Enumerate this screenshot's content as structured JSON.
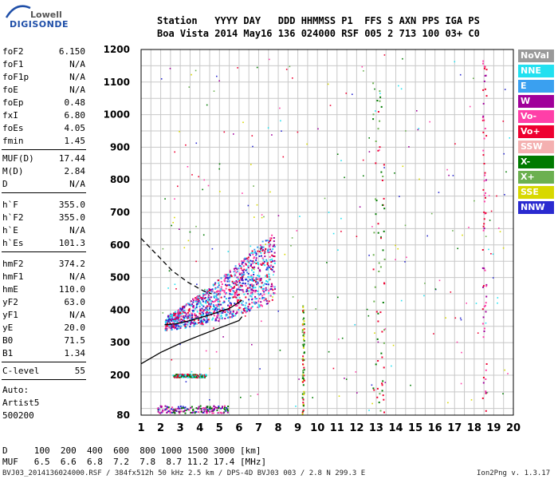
{
  "logo": {
    "line1": "Lowell",
    "line2": "DIGISONDE"
  },
  "header": {
    "station_label": "Station",
    "station": "Boa Vista",
    "yyyy_label": "YYYY",
    "yyyy": "2014",
    "day_label": "DAY",
    "day": "May16",
    "ddd_label": "DDD",
    "ddd": "136",
    "hhmmss_label": "HHMMSS",
    "hhmmss": "024000",
    "p1_label": "P1",
    "p1": "RSF",
    "ffs_label": "FFS",
    "ffs": "005",
    "s_label": "S",
    "s": "2",
    "axn_label": "AXN",
    "axn": "713",
    "pps_label": "PPS",
    "pps": "100",
    "iga_label": "IGA",
    "iga": "03+",
    "ps_label": "PS",
    "ps": "C0"
  },
  "params": [
    {
      "name": "foF2",
      "value": "6.150"
    },
    {
      "name": "foF1",
      "value": "N/A"
    },
    {
      "name": "foF1p",
      "value": "N/A"
    },
    {
      "name": "foE",
      "value": "N/A"
    },
    {
      "name": "foEp",
      "value": "0.48"
    },
    {
      "name": "fxI",
      "value": "6.80"
    },
    {
      "name": "foEs",
      "value": "4.05"
    },
    {
      "name": "fmin",
      "value": "1.45"
    },
    {
      "name": "MUF(D)",
      "value": "17.44"
    },
    {
      "name": "M(D)",
      "value": "2.84"
    },
    {
      "name": "D",
      "value": "N/A"
    },
    {
      "name": "h`F",
      "value": "355.0"
    },
    {
      "name": "h`F2",
      "value": "355.0"
    },
    {
      "name": "h`E",
      "value": "N/A"
    },
    {
      "name": "h`Es",
      "value": "101.3"
    },
    {
      "name": "hmF2",
      "value": "374.2"
    },
    {
      "name": "hmF1",
      "value": "N/A"
    },
    {
      "name": "hmE",
      "value": "110.0"
    },
    {
      "name": "yF2",
      "value": "63.0"
    },
    {
      "name": "yF1",
      "value": "N/A"
    },
    {
      "name": "yE",
      "value": "20.0"
    },
    {
      "name": "B0",
      "value": "71.5"
    },
    {
      "name": "B1",
      "value": "1.34"
    },
    {
      "name": "C-level",
      "value": "55"
    }
  ],
  "notes": {
    "auto": "Auto:",
    "artist": "Artist5",
    "code": "500200"
  },
  "legend": [
    {
      "label": "NoVal",
      "color": "#9a9a9a"
    },
    {
      "label": "NNE",
      "color": "#22e0f0"
    },
    {
      "label": "E",
      "color": "#3aa0f0"
    },
    {
      "label": "W",
      "color": "#a0009a"
    },
    {
      "label": "Vo-",
      "color": "#ff3fa8"
    },
    {
      "label": "Vo+",
      "color": "#ee0030"
    },
    {
      "label": "SSW",
      "color": "#f4b0b0"
    },
    {
      "label": "X-",
      "color": "#007a00"
    },
    {
      "label": "X+",
      "color": "#6cb050"
    },
    {
      "label": "SSE",
      "color": "#d8d800"
    },
    {
      "label": "NNW",
      "color": "#2a2ad0"
    }
  ],
  "footer": {
    "d_label": "D",
    "d_values": "100  200  400  600  800 1000 1500 3000 [km]",
    "muf_label": "MUF",
    "muf_values": "6.5  6.6  6.8  7.2  7.8  8.7 11.2 17.4 [MHz]",
    "file_info": "BVJ03_2014136024000.RSF / 384fx512h 50 kHz 2.5 km / DPS-4D BVJ03 003 / 2.8 N 299.3 E",
    "version": "Ion2Png v. 1.3.17"
  },
  "chart_data": {
    "type": "scatter",
    "xlim": [
      1,
      20
    ],
    "ylim": [
      80,
      1200
    ],
    "x_ticks": [
      "1",
      "2",
      "3",
      "4",
      "5",
      "6",
      "7",
      "8",
      "9",
      "10",
      "11",
      "12",
      "13",
      "14",
      "15",
      "16",
      "17",
      "18",
      "19",
      "20"
    ],
    "y_ticks": [
      "80",
      "200",
      "300",
      "400",
      "500",
      "600",
      "700",
      "800",
      "900",
      "1000",
      "1100",
      "1200"
    ],
    "grid": true,
    "clusters": [
      {
        "name": "F2 trace",
        "x": [
          2.2,
          7.8
        ],
        "y": [
          340,
          600
        ],
        "colors": [
          "#22e0f0",
          "#3aa0f0",
          "#ee0030",
          "#ff3fa8",
          "#a0009a",
          "#2a2ad0"
        ]
      },
      {
        "name": "Es 200 km",
        "x": [
          2.6,
          4.3
        ],
        "y": [
          195,
          205
        ],
        "colors": [
          "#ee0030",
          "#007a00",
          "#22e0f0"
        ]
      },
      {
        "name": "Es 100 km",
        "x": [
          1.8,
          5.4
        ],
        "y": [
          88,
          110
        ],
        "colors": [
          "#a0009a",
          "#ff3fa8",
          "#2a2ad0",
          "#007a00"
        ]
      },
      {
        "name": "9.2 MHz column",
        "x": [
          9.2,
          9.3
        ],
        "y": [
          85,
          420
        ],
        "colors": [
          "#007a00",
          "#d8d800",
          "#ee0030",
          "#6cb050"
        ]
      },
      {
        "name": "13 MHz column",
        "x": [
          12.8,
          13.4
        ],
        "y": [
          85,
          1150
        ],
        "colors": [
          "#007a00",
          "#6cb050",
          "#ee0030"
        ]
      },
      {
        "name": "18.5 MHz column",
        "x": [
          18.4,
          18.6
        ],
        "y": [
          85,
          1190
        ],
        "colors": [
          "#a0009a",
          "#ff3fa8",
          "#ee0030"
        ]
      }
    ],
    "curves": [
      {
        "name": "virtual height",
        "style": "solid",
        "x": [
          2.2,
          2.8,
          3.5,
          4.5,
          5.5,
          6.15
        ],
        "y": [
          355,
          358,
          368,
          385,
          405,
          430
        ]
      },
      {
        "name": "true height",
        "style": "solid",
        "x": [
          1,
          2,
          3,
          4,
          5,
          6,
          6.15
        ],
        "y": [
          235,
          270,
          298,
          322,
          345,
          368,
          380
        ]
      },
      {
        "name": "model",
        "style": "dashed",
        "x": [
          1,
          1.8,
          2.6,
          3.4,
          4.2,
          4.6
        ],
        "y": [
          620,
          570,
          520,
          485,
          458,
          450
        ]
      }
    ]
  }
}
